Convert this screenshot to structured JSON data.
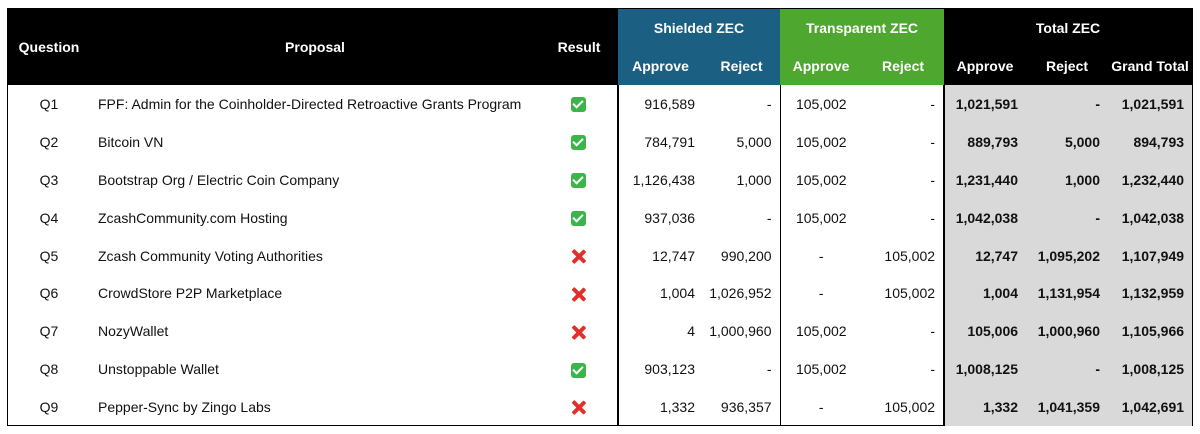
{
  "headers": {
    "question": "Question",
    "proposal": "Proposal",
    "result": "Result",
    "shielded": "Shielded ZEC",
    "transparent": "Transparent ZEC",
    "total": "Total ZEC",
    "approve": "Approve",
    "reject": "Reject",
    "grand_total": "Grand Total"
  },
  "colors": {
    "shielded": "#1b5f82",
    "transparent": "#4ea72e",
    "header": "#000000",
    "total_bg": "#d9d9d9"
  },
  "rows": [
    {
      "q": "Q1",
      "proposal": "FPF: Admin for the Coinholder-Directed Retroactive Grants Program",
      "result": "approved",
      "s_app": "916,589",
      "s_rej": "-",
      "t_app": "105,002",
      "t_rej": "-",
      "tot_app": "1,021,591",
      "tot_rej": "-",
      "grand": "1,021,591"
    },
    {
      "q": "Q2",
      "proposal": "Bitcoin VN",
      "result": "approved",
      "s_app": "784,791",
      "s_rej": "5,000",
      "t_app": "105,002",
      "t_rej": "-",
      "tot_app": "889,793",
      "tot_rej": "5,000",
      "grand": "894,793"
    },
    {
      "q": "Q3",
      "proposal": "Bootstrap Org / Electric Coin Company",
      "result": "approved",
      "s_app": "1,126,438",
      "s_rej": "1,000",
      "t_app": "105,002",
      "t_rej": "-",
      "tot_app": "1,231,440",
      "tot_rej": "1,000",
      "grand": "1,232,440"
    },
    {
      "q": "Q4",
      "proposal": "ZcashCommunity.com Hosting",
      "result": "approved",
      "s_app": "937,036",
      "s_rej": "-",
      "t_app": "105,002",
      "t_rej": "-",
      "tot_app": "1,042,038",
      "tot_rej": "-",
      "grand": "1,042,038"
    },
    {
      "q": "Q5",
      "proposal": "Zcash Community Voting Authorities",
      "result": "rejected",
      "s_app": "12,747",
      "s_rej": "990,200",
      "t_app": "-",
      "t_rej": "105,002",
      "tot_app": "12,747",
      "tot_rej": "1,095,202",
      "grand": "1,107,949"
    },
    {
      "q": "Q6",
      "proposal": "CrowdStore P2P Marketplace",
      "result": "rejected",
      "s_app": "1,004",
      "s_rej": "1,026,952",
      "t_app": "-",
      "t_rej": "105,002",
      "tot_app": "1,004",
      "tot_rej": "1,131,954",
      "grand": "1,132,959"
    },
    {
      "q": "Q7",
      "proposal": "NozyWallet",
      "result": "rejected",
      "s_app": "4",
      "s_rej": "1,000,960",
      "t_app": "105,002",
      "t_rej": "-",
      "tot_app": "105,006",
      "tot_rej": "1,000,960",
      "grand": "1,105,966"
    },
    {
      "q": "Q8",
      "proposal": "Unstoppable Wallet",
      "result": "approved",
      "s_app": "903,123",
      "s_rej": "-",
      "t_app": "105,002",
      "t_rej": "-",
      "tot_app": "1,008,125",
      "tot_rej": "-",
      "grand": "1,008,125"
    },
    {
      "q": "Q9",
      "proposal": "Pepper-Sync by Zingo Labs",
      "result": "rejected",
      "s_app": "1,332",
      "s_rej": "936,357",
      "t_app": "-",
      "t_rej": "105,002",
      "tot_app": "1,332",
      "tot_rej": "1,041,359",
      "grand": "1,042,691"
    }
  ]
}
